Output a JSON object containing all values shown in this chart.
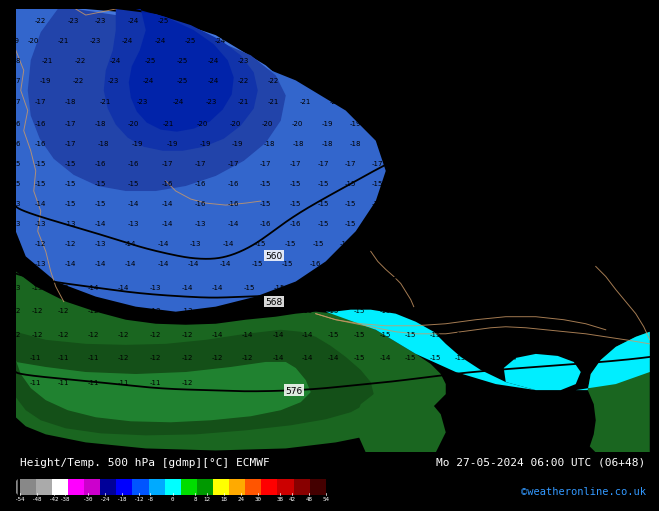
{
  "title_left": "Height/Temp. 500 hPa [gdmp][°C] ECMWF",
  "title_right": "Mo 27-05-2024 06:00 UTC (06+48)",
  "credit": "©weatheronline.co.uk",
  "bg_color": "#00eeff",
  "colors": {
    "dark_blue": "#0044bb",
    "deeper_blue": "#1a3aaa",
    "medium_blue": "#2255cc",
    "light_blue": "#4488ee",
    "cyan": "#00ddff",
    "dark_green": "#1a6620",
    "medium_green": "#228833",
    "light_green": "#33aa44",
    "teal_sea": "#00ccff"
  },
  "colorbar_colors": [
    "#888888",
    "#aaaaaa",
    "#ffffff",
    "#ff00ff",
    "#cc00cc",
    "#000099",
    "#0000ff",
    "#0055ff",
    "#00aaff",
    "#00ffff",
    "#00dd00",
    "#009900",
    "#ffff00",
    "#ffaa00",
    "#ff5500",
    "#ff0000",
    "#cc0000",
    "#880000",
    "#440000"
  ],
  "cbar_labels": [
    "-54",
    "-48",
    "-42",
    "-38",
    "-30",
    "-24",
    "-18",
    "-12",
    "-8",
    "0",
    "8",
    "12",
    "18",
    "24",
    "30",
    "38",
    "42",
    "48",
    "54"
  ]
}
